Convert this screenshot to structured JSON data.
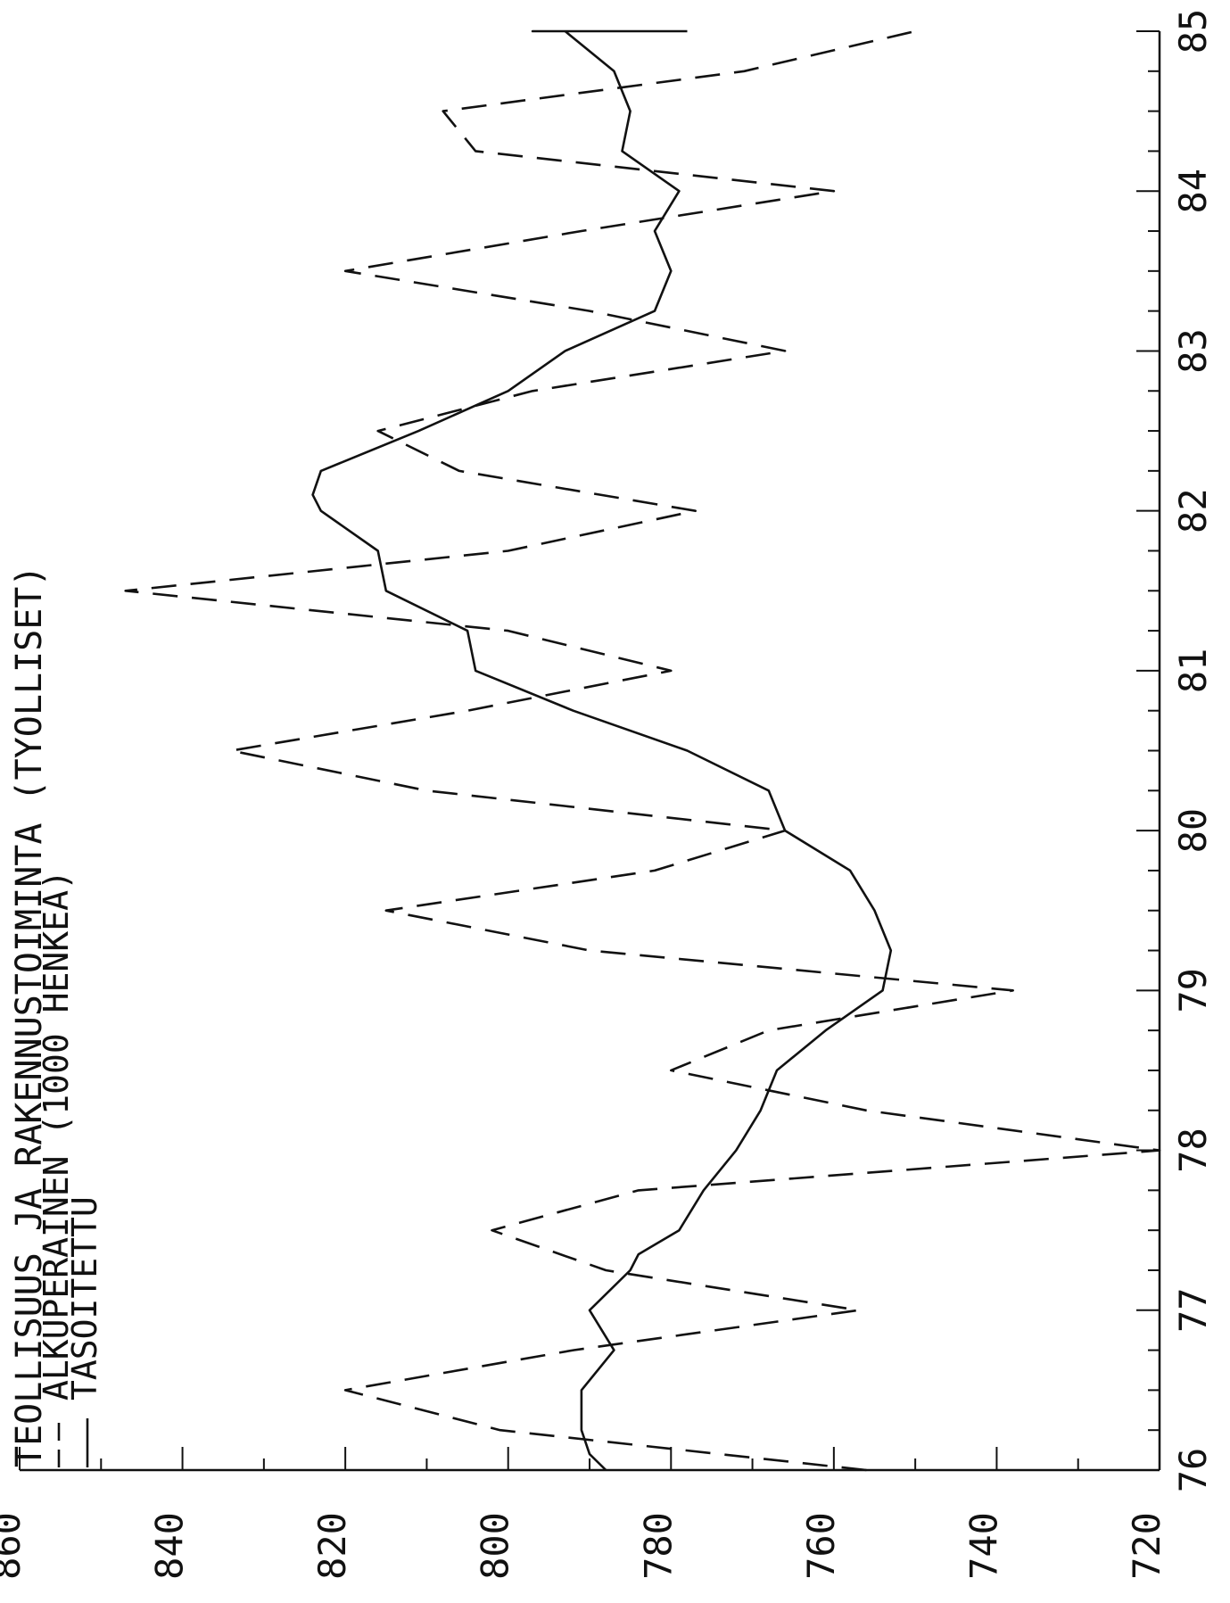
{
  "chart_data": {
    "type": "line",
    "title": "TEOLLISUUS JA RAKENNUSTOIMINTA (TYOLLISET)",
    "legend": [
      {
        "style": "dashed",
        "label": "ALKUPERAINEN (1000 HENKEA)"
      },
      {
        "style": "solid",
        "label": "TASOITETTU"
      }
    ],
    "x_ticks": [
      "76",
      "77",
      "78",
      "79",
      "80",
      "81",
      "82",
      "83",
      "84",
      "85"
    ],
    "y_ticks": [
      "720",
      "740",
      "760",
      "780",
      "800",
      "820",
      "840",
      "860"
    ],
    "xlim": [
      76,
      85
    ],
    "ylim": [
      720,
      860
    ],
    "orientation": "rotated-90-clockwise",
    "series": [
      {
        "name": "ALKUPERAINEN",
        "style": "dashed",
        "x": [
          76.0,
          76.25,
          76.5,
          76.75,
          77.0,
          77.25,
          77.5,
          77.75,
          78.0,
          78.25,
          78.5,
          78.75,
          79.0,
          79.25,
          79.5,
          79.75,
          80.0,
          80.25,
          80.5,
          80.75,
          81.0,
          81.25,
          81.5,
          81.75,
          82.0,
          82.25,
          82.5,
          82.75,
          83.0,
          83.25,
          83.5,
          83.75,
          84.0,
          84.25,
          84.5,
          84.75,
          85.0
        ],
        "values": [
          756,
          801,
          820,
          792,
          757,
          788,
          802,
          784,
          720,
          756,
          780,
          768,
          738,
          790,
          815,
          782,
          766,
          810,
          834,
          805,
          780,
          800,
          847,
          800,
          777,
          806,
          816,
          797,
          766,
          790,
          820,
          791,
          760,
          804,
          808,
          771,
          750
        ]
      },
      {
        "name": "TASOITETTU",
        "style": "solid",
        "values": [
          788,
          790,
          791,
          791,
          787,
          790,
          785,
          784,
          779,
          776,
          772,
          769,
          767,
          761,
          754,
          753,
          755,
          758,
          766,
          768,
          778,
          792,
          804,
          805,
          815,
          816,
          823,
          824,
          823,
          811,
          800,
          793,
          782,
          780,
          782,
          779,
          786,
          785,
          787,
          793,
          797,
          796,
          793,
          785,
          785,
          782,
          778,
          778,
          778,
          778
        ],
        "x": [
          76.0,
          76.1,
          76.25,
          76.5,
          76.75,
          77.0,
          77.25,
          77.35,
          77.5,
          77.75,
          78.0,
          78.25,
          78.5,
          78.75,
          79.0,
          79.25,
          79.5,
          79.75,
          80.0,
          80.25,
          80.5,
          80.75,
          81.0,
          81.25,
          81.5,
          81.75,
          82.0,
          82.1,
          82.25,
          82.5,
          82.75,
          83.0,
          83.25,
          83.5,
          83.75,
          84.0,
          84.25,
          84.5,
          84.75,
          85.0,
          85.0,
          85.0,
          85.0,
          85.0,
          85.0,
          85.0,
          85.0,
          85.0,
          85.0,
          85.0
        ]
      }
    ]
  }
}
